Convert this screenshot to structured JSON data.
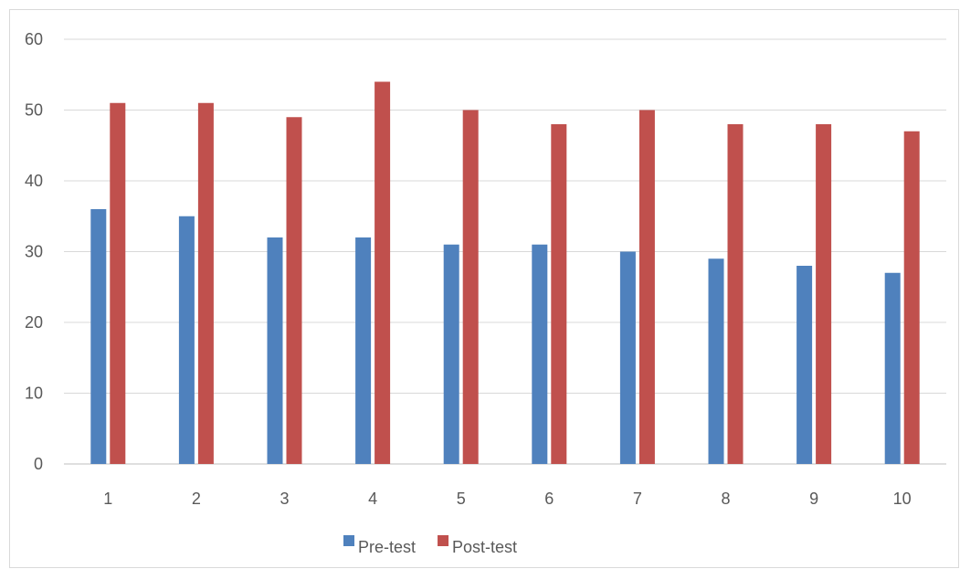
{
  "chart_data": {
    "type": "bar",
    "categories": [
      "1",
      "2",
      "3",
      "4",
      "5",
      "6",
      "7",
      "8",
      "9",
      "10"
    ],
    "series": [
      {
        "name": "Pre-test",
        "color": "#4f81bd",
        "values": [
          36,
          35,
          32,
          32,
          31,
          31,
          30,
          29,
          28,
          27
        ]
      },
      {
        "name": "Post-test",
        "color": "#c0504d",
        "values": [
          51,
          51,
          49,
          54,
          50,
          48,
          50,
          48,
          48,
          47
        ]
      }
    ],
    "ylim": [
      0,
      60
    ],
    "yticks": [
      0,
      10,
      20,
      30,
      40,
      50,
      60
    ],
    "grid": true,
    "legend_position": "bottom",
    "title": "",
    "xlabel": "",
    "ylabel": ""
  }
}
